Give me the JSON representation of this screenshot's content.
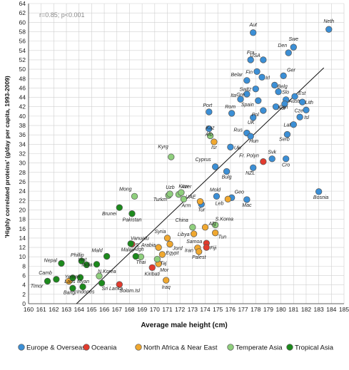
{
  "chart_data": {
    "type": "scatter",
    "annotation": "r=0.85; p<0.001",
    "xlabel": "Average male height (cm)",
    "ylabel": "'Highly correlated proteins' (g/day per capita, 1993-2009)",
    "xlim": [
      160,
      185
    ],
    "ylim": [
      0,
      64
    ],
    "xticks": [
      160,
      161,
      162,
      163,
      164,
      165,
      166,
      167,
      168,
      169,
      170,
      171,
      172,
      173,
      174,
      175,
      176,
      177,
      178,
      179,
      180,
      181,
      182,
      183,
      184,
      185
    ],
    "yticks": [
      0,
      2,
      4,
      6,
      8,
      10,
      12,
      14,
      16,
      18,
      20,
      22,
      24,
      26,
      28,
      30,
      32,
      34,
      36,
      38,
      40,
      42,
      44,
      46,
      48,
      50,
      52,
      54,
      56,
      58,
      60,
      62,
      64
    ],
    "grid": true,
    "legend_position": "bottom",
    "trendline": {
      "x": [
        163.8,
        183.4
      ],
      "y": [
        0.0,
        50.3
      ]
    },
    "series": [
      {
        "name": "Europe & Overseas",
        "color": "#3b8fd6",
        "points": [
          {
            "x": 183.8,
            "y": 58.5,
            "label": "Neth"
          },
          {
            "x": 177.8,
            "y": 57.8,
            "label": "Aut"
          },
          {
            "x": 181.0,
            "y": 54.7,
            "label": "Swe"
          },
          {
            "x": 180.6,
            "y": 53.5,
            "label": "Den"
          },
          {
            "x": 178.6,
            "y": 52.0,
            "label": "USA"
          },
          {
            "x": 177.6,
            "y": 52.0,
            "label": "Fra"
          },
          {
            "x": 178.1,
            "y": 49.5,
            "label": "Fin"
          },
          {
            "x": 180.2,
            "y": 48.6,
            "label": "Ger"
          },
          {
            "x": 178.5,
            "y": 48.3,
            "label": "Irl"
          },
          {
            "x": 177.3,
            "y": 47.6,
            "label": "Belar"
          },
          {
            "x": 179.5,
            "y": 46.6,
            "label": "Belg"
          },
          {
            "x": 178.0,
            "y": 45.8,
            "label": "Switz"
          },
          {
            "x": 179.8,
            "y": 45.2,
            "label": "Slo"
          },
          {
            "x": 177.3,
            "y": 44.7,
            "label": "Gre"
          },
          {
            "x": 181.1,
            "y": 44.2,
            "label": "Est"
          },
          {
            "x": 176.8,
            "y": 43.6,
            "label": "Ita"
          },
          {
            "x": 180.4,
            "y": 43.5,
            "label": "Austr"
          },
          {
            "x": 178.2,
            "y": 43.3,
            "label": "Spain"
          },
          {
            "x": 181.7,
            "y": 43.0,
            "label": "Lith"
          },
          {
            "x": 180.3,
            "y": 42.6,
            "label": "Nor"
          },
          {
            "x": 179.6,
            "y": 42.0,
            "label": "Can"
          },
          {
            "x": 178.6,
            "y": 41.2,
            "label": "Pol"
          },
          {
            "x": 182.0,
            "y": 41.3,
            "label": "Cze"
          },
          {
            "x": 174.3,
            "y": 40.9,
            "label": "Port"
          },
          {
            "x": 176.1,
            "y": 40.6,
            "label": "Rom"
          },
          {
            "x": 177.8,
            "y": 39.7,
            "label": "UK"
          },
          {
            "x": 181.5,
            "y": 39.8,
            "label": "Isl"
          },
          {
            "x": 181.0,
            "y": 38.2,
            "label": "Lat"
          },
          {
            "x": 174.3,
            "y": 37.3,
            "label": "Alb"
          },
          {
            "x": 177.3,
            "y": 36.4,
            "label": "Rus"
          },
          {
            "x": 180.5,
            "y": 36.1,
            "label": "Serb"
          },
          {
            "x": 177.6,
            "y": 35.7,
            "label": "Hun"
          },
          {
            "x": 176.0,
            "y": 33.4,
            "label": "Ukr"
          },
          {
            "x": 174.8,
            "y": 29.2,
            "label": "Cyprus"
          },
          {
            "x": 175.7,
            "y": 28.2,
            "label": "Bulg"
          },
          {
            "x": 177.8,
            "y": 29.0,
            "label": "NZL"
          },
          {
            "x": 179.3,
            "y": 30.9,
            "label": "Svk"
          },
          {
            "x": 180.4,
            "y": 30.9,
            "label": "Cro"
          },
          {
            "x": 174.9,
            "y": 22.9,
            "label": "Mold"
          },
          {
            "x": 176.1,
            "y": 22.6,
            "label": "Geo"
          },
          {
            "x": 173.7,
            "y": 21.2,
            "label": "Tur"
          },
          {
            "x": 177.3,
            "y": 22.2,
            "label": "Mac"
          },
          {
            "x": 183.0,
            "y": 23.9,
            "label": "Bosnia"
          }
        ]
      },
      {
        "name": "Oceania",
        "color": "#e23b2e",
        "points": [
          {
            "x": 178.6,
            "y": 30.3,
            "label": "Fr. Polyn"
          },
          {
            "x": 168.2,
            "y": 12.7,
            "label": "Vanuatu"
          },
          {
            "x": 174.1,
            "y": 12.9,
            "label": "Samoa"
          },
          {
            "x": 174.1,
            "y": 12.0,
            "label": "Fiji"
          },
          {
            "x": 169.8,
            "y": 7.7,
            "label": "Kiribati"
          },
          {
            "x": 167.2,
            "y": 4.1,
            "label": "Solom.Isl"
          }
        ]
      },
      {
        "name": "North Africa & Near East",
        "color": "#f0a830",
        "points": [
          {
            "x": 174.7,
            "y": 34.5,
            "label": "Isr"
          },
          {
            "x": 173.6,
            "y": 21.8,
            "label": "UAE"
          },
          {
            "x": 175.8,
            "y": 22.3,
            "label": "Leb"
          },
          {
            "x": 174.0,
            "y": 16.3,
            "label": "Alg"
          },
          {
            "x": 173.1,
            "y": 14.9,
            "label": "Libya"
          },
          {
            "x": 174.8,
            "y": 15.1,
            "label": "Tun"
          },
          {
            "x": 171.0,
            "y": 14.0,
            "label": "Syria"
          },
          {
            "x": 170.3,
            "y": 12.0,
            "label": "S. Arabia"
          },
          {
            "x": 171.2,
            "y": 12.7,
            "label": "Jord"
          },
          {
            "x": 173.4,
            "y": 11.9,
            "label": "Iran"
          },
          {
            "x": 173.5,
            "y": 11.1,
            "label": "Palest"
          },
          {
            "x": 170.6,
            "y": 10.5,
            "label": "Egypt"
          },
          {
            "x": 170.3,
            "y": 8.5,
            "label": "Mor"
          },
          {
            "x": 163.2,
            "y": 4.8,
            "label": "Yemen"
          },
          {
            "x": 170.9,
            "y": 5.0,
            "label": "Iraq"
          }
        ]
      },
      {
        "name": "Temperate Asia",
        "color": "#8fcf7d",
        "points": [
          {
            "x": 168.4,
            "y": 22.9,
            "label": "Mong"
          },
          {
            "x": 171.3,
            "y": 31.3,
            "label": "Kyrg"
          },
          {
            "x": 174.4,
            "y": 35.8,
            "label": "Kaz"
          },
          {
            "x": 171.1,
            "y": 23.1,
            "label": "Uzb"
          },
          {
            "x": 171.2,
            "y": 23.4,
            "label": "Turkm"
          },
          {
            "x": 171.9,
            "y": 23.3,
            "label": "Kuw"
          },
          {
            "x": 172.1,
            "y": 23.7,
            "label": "Azer"
          },
          {
            "x": 172.3,
            "y": 22.3,
            "label": "Arm"
          },
          {
            "x": 174.8,
            "y": 16.8,
            "label": "S.Korea"
          },
          {
            "x": 173.0,
            "y": 16.3,
            "label": "China"
          },
          {
            "x": 168.9,
            "y": 10.0,
            "label": "Thai"
          },
          {
            "x": 165.6,
            "y": 5.9,
            "label": "N.Korea"
          },
          {
            "x": 170.2,
            "y": 9.5,
            "label": "Taj"
          }
        ]
      },
      {
        "name": "Tropical Asia",
        "color": "#1c8a1c",
        "points": [
          {
            "x": 167.2,
            "y": 20.5,
            "label": "Brunei"
          },
          {
            "x": 168.2,
            "y": 19.2,
            "label": "Pakistan"
          },
          {
            "x": 168.1,
            "y": 12.8,
            "label": "Afgh"
          },
          {
            "x": 166.2,
            "y": 10.1,
            "label": "Mald"
          },
          {
            "x": 168.5,
            "y": 10.1,
            "label": "Malay"
          },
          {
            "x": 164.2,
            "y": 9.1,
            "label": "Phillip"
          },
          {
            "x": 162.6,
            "y": 8.6,
            "label": "Nepal"
          },
          {
            "x": 164.6,
            "y": 8.3,
            "label": "Viet"
          },
          {
            "x": 165.4,
            "y": 8.4,
            "label": "India"
          },
          {
            "x": 162.2,
            "y": 5.2,
            "label": "Camb"
          },
          {
            "x": 163.5,
            "y": 5.5,
            "label": "Laos"
          },
          {
            "x": 164.1,
            "y": 5.6,
            "label": "Myan"
          },
          {
            "x": 165.8,
            "y": 4.4,
            "label": "Sri Lanka"
          },
          {
            "x": 161.5,
            "y": 4.8,
            "label": "Timor"
          },
          {
            "x": 163.5,
            "y": 3.3,
            "label": "Bangl"
          },
          {
            "x": 164.3,
            "y": 3.6,
            "label": "Indones"
          }
        ]
      }
    ]
  }
}
